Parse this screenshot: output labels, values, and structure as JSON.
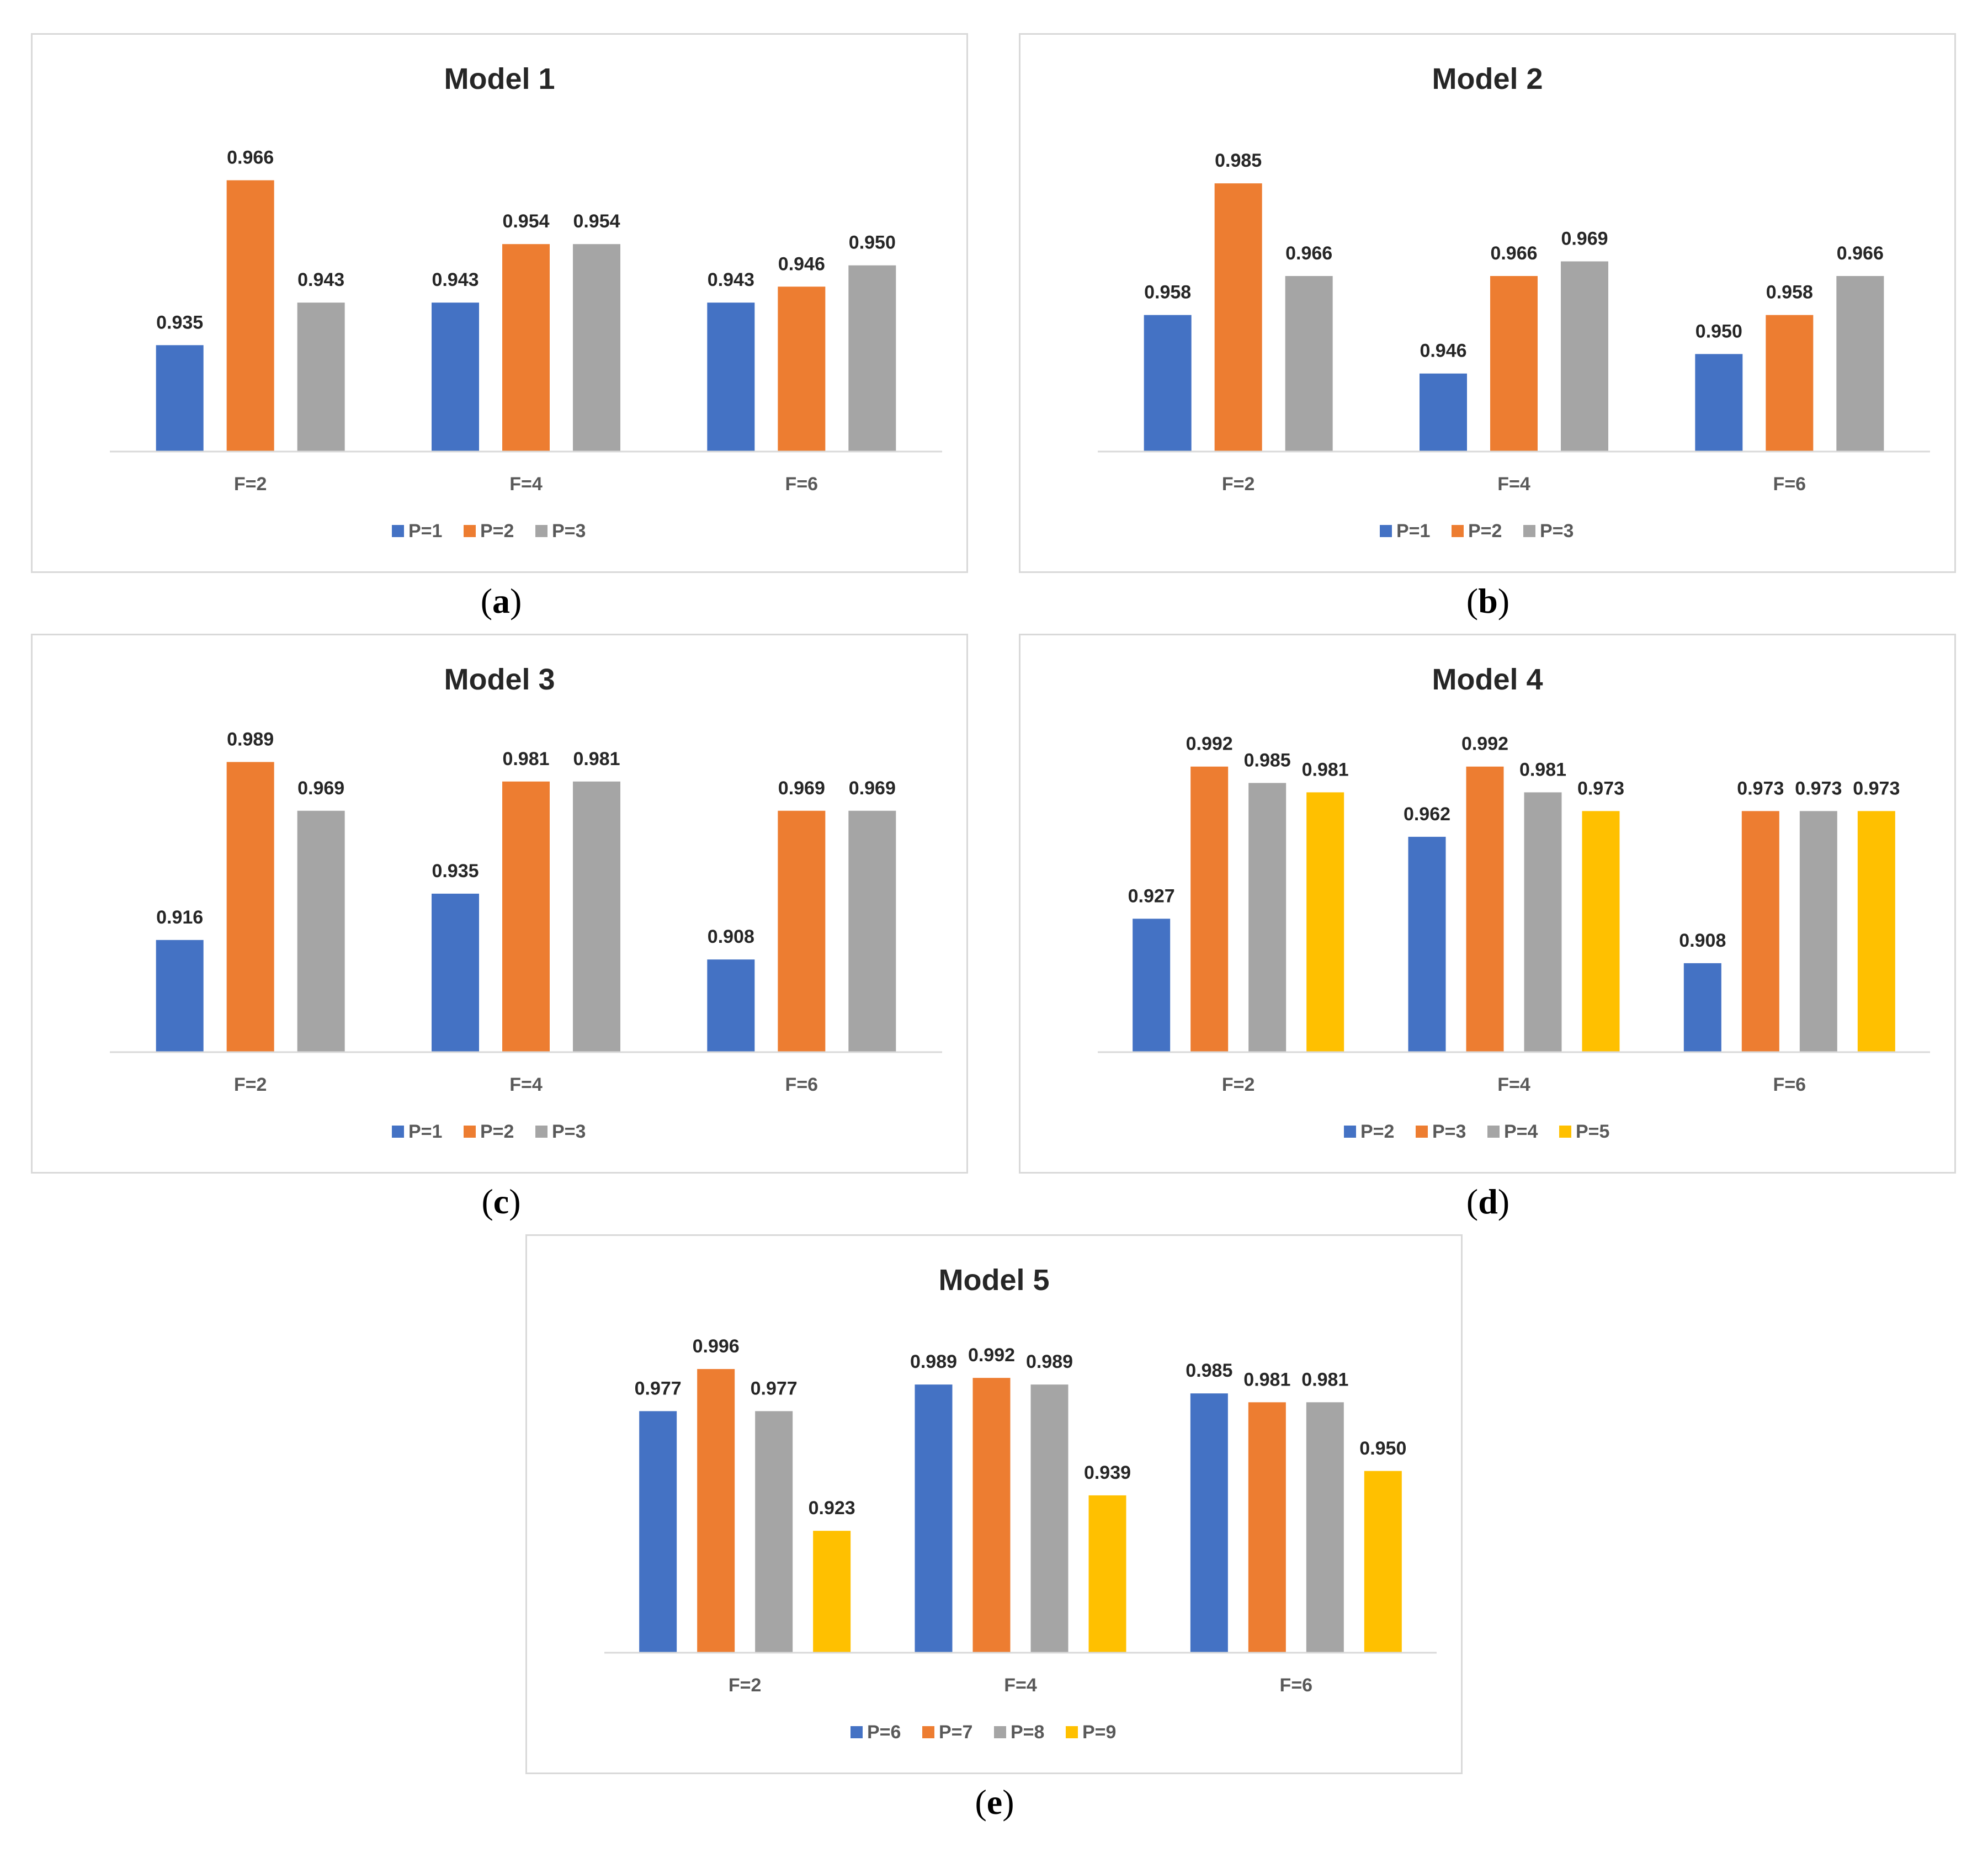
{
  "colors": {
    "blue": "#4472C4",
    "orange": "#ED7D31",
    "gray": "#A5A5A5",
    "yellow": "#FFC000",
    "axis": "#d9d9d9"
  },
  "captions": [
    "a",
    "b",
    "c",
    "d",
    "e"
  ],
  "chart_data": [
    {
      "type": "bar",
      "title": "Model 1",
      "categories": [
        "F=2",
        "F=4",
        "F=6"
      ],
      "series": [
        {
          "name": "P=1",
          "color": "#4472C4",
          "values": [
            0.935,
            0.943,
            0.943
          ]
        },
        {
          "name": "P=2",
          "color": "#ED7D31",
          "values": [
            0.966,
            0.954,
            0.946
          ]
        },
        {
          "name": "P=3",
          "color": "#A5A5A5",
          "values": [
            0.943,
            0.954,
            0.95
          ]
        }
      ],
      "ylim": [
        0.915,
        0.97
      ],
      "legend": "bottom",
      "grid": false
    },
    {
      "type": "bar",
      "title": "Model 2",
      "categories": [
        "F=2",
        "F=4",
        "F=6"
      ],
      "series": [
        {
          "name": "P=1",
          "color": "#4472C4",
          "values": [
            0.958,
            0.946,
            0.95
          ]
        },
        {
          "name": "P=2",
          "color": "#ED7D31",
          "values": [
            0.985,
            0.966,
            0.958
          ]
        },
        {
          "name": "P=3",
          "color": "#A5A5A5",
          "values": [
            0.966,
            0.969,
            0.966
          ]
        }
      ],
      "ylim": [
        0.93,
        0.99
      ],
      "legend": "bottom",
      "grid": false
    },
    {
      "type": "bar",
      "title": "Model 3",
      "categories": [
        "F=2",
        "F=4",
        "F=6"
      ],
      "series": [
        {
          "name": "P=1",
          "color": "#4472C4",
          "values": [
            0.916,
            0.935,
            0.908
          ]
        },
        {
          "name": "P=2",
          "color": "#ED7D31",
          "values": [
            0.989,
            0.981,
            0.969
          ]
        },
        {
          "name": "P=3",
          "color": "#A5A5A5",
          "values": [
            0.969,
            0.981,
            0.969
          ]
        }
      ],
      "ylim": [
        0.87,
        0.99
      ],
      "legend": "bottom",
      "grid": false
    },
    {
      "type": "bar",
      "title": "Model 4",
      "categories": [
        "F=2",
        "F=4",
        "F=6"
      ],
      "series": [
        {
          "name": "P=2",
          "color": "#4472C4",
          "values": [
            0.927,
            0.962,
            0.908
          ]
        },
        {
          "name": "P=3",
          "color": "#ED7D31",
          "values": [
            0.992,
            0.992,
            0.973
          ]
        },
        {
          "name": "P=4",
          "color": "#A5A5A5",
          "values": [
            0.985,
            0.981,
            0.973
          ]
        },
        {
          "name": "P=5",
          "color": "#FFC000",
          "values": [
            0.981,
            0.973,
            0.973
          ]
        }
      ],
      "ylim": [
        0.87,
        0.995
      ],
      "legend": "bottom",
      "grid": false
    },
    {
      "type": "bar",
      "title": "Model 5",
      "categories": [
        "F=2",
        "F=4",
        "F=6"
      ],
      "series": [
        {
          "name": "P=6",
          "color": "#4472C4",
          "values": [
            0.977,
            0.989,
            0.985
          ]
        },
        {
          "name": "P=7",
          "color": "#ED7D31",
          "values": [
            0.996,
            0.992,
            0.981
          ]
        },
        {
          "name": "P=8",
          "color": "#A5A5A5",
          "values": [
            0.977,
            0.989,
            0.981
          ]
        },
        {
          "name": "P=9",
          "color": "#FFC000",
          "values": [
            0.923,
            0.939,
            0.95
          ]
        }
      ],
      "ylim": [
        0.868,
        1.0
      ],
      "legend": "bottom",
      "grid": false
    }
  ]
}
